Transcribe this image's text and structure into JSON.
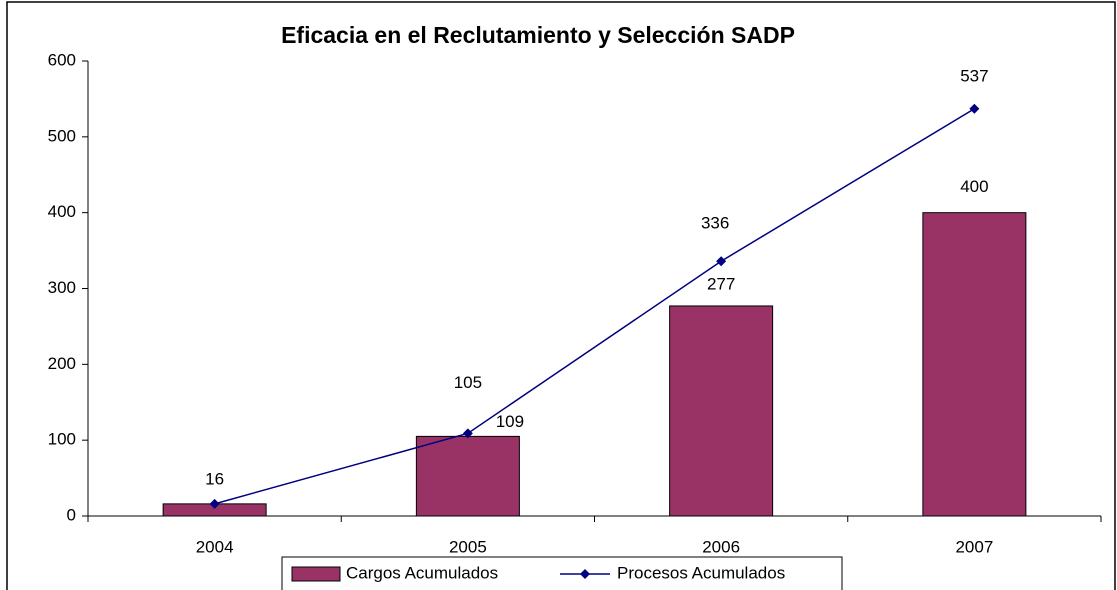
{
  "chart_data": {
    "type": "bar",
    "title": "Eficacia en el Reclutamiento y Selección SADP",
    "categories": [
      "2004",
      "2005",
      "2006",
      "2007"
    ],
    "series": [
      {
        "name": "Cargos Acumulados",
        "type": "bar",
        "color": "#993366",
        "values": [
          16,
          105,
          277,
          400
        ]
      },
      {
        "name": "Procesos Acumulados",
        "type": "line",
        "color": "#000080",
        "values": [
          16,
          109,
          336,
          537
        ]
      }
    ],
    "ylim": [
      0,
      600
    ],
    "yticks": [
      0,
      100,
      200,
      300,
      400,
      500,
      600
    ],
    "grid": false,
    "legend": "bottom"
  }
}
